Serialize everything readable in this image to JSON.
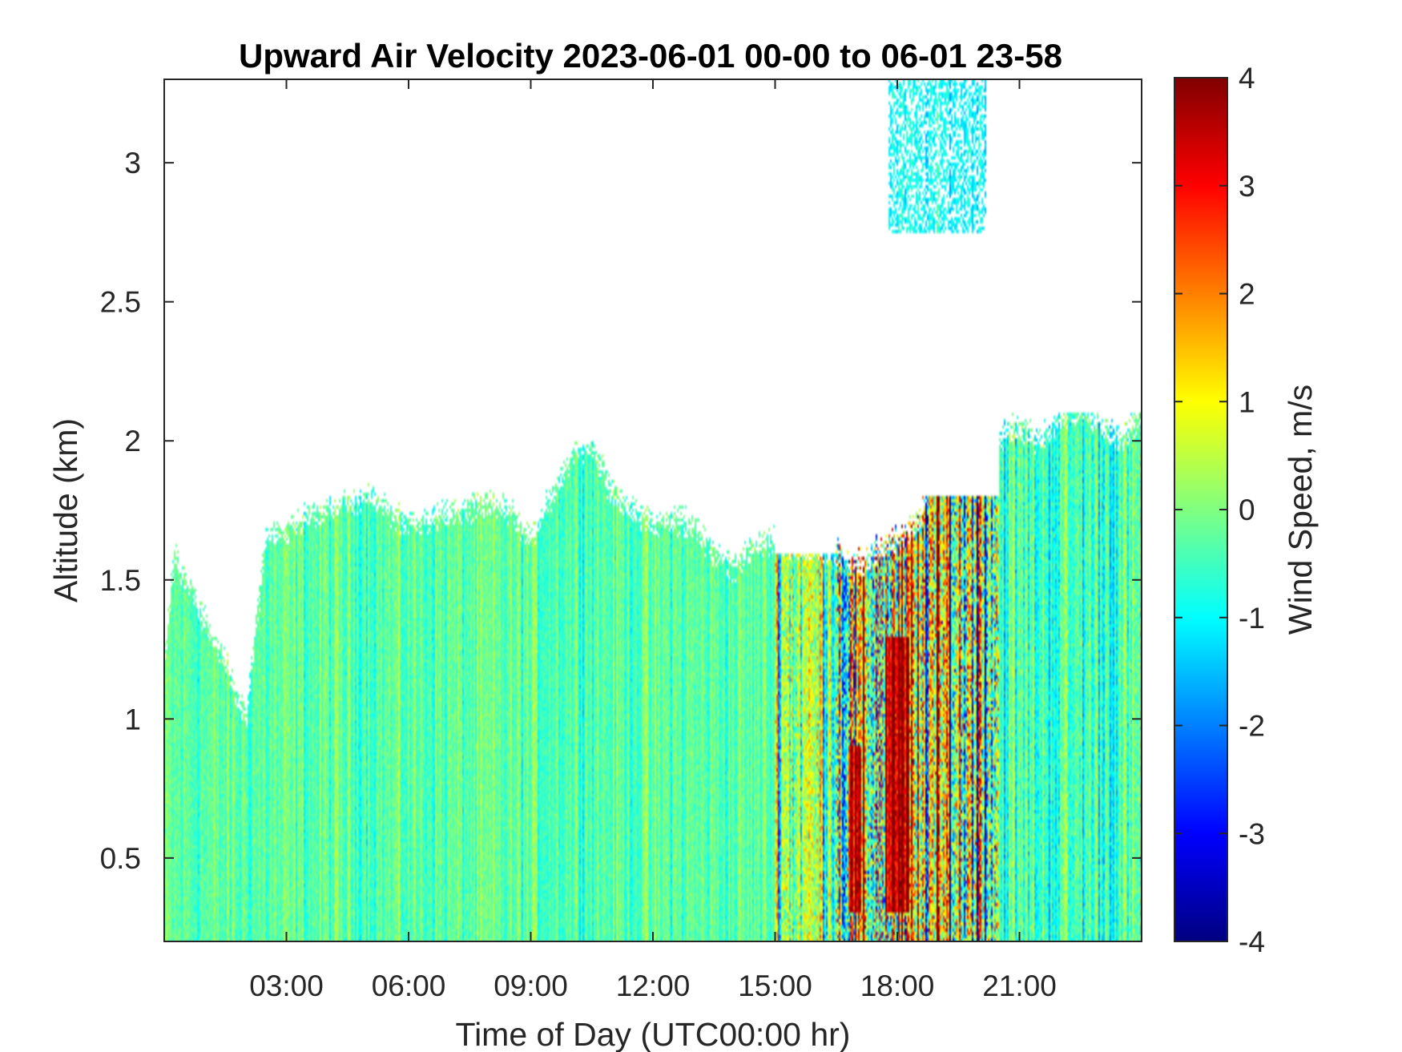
{
  "chart_data": {
    "type": "heatmap",
    "title": "Upward Air Velocity 2023-06-01 00-00 to 06-01 23-58",
    "xlabel": "Time of Day (UTC00:00 hr)",
    "ylabel": "Altitude (km)",
    "colorbar_label": "Wind Speed, m/s",
    "x_unit": "hours",
    "xlim": [
      0,
      24
    ],
    "ylim": [
      0.2,
      3.3
    ],
    "x_ticks": [
      3,
      6,
      9,
      12,
      15,
      18,
      21
    ],
    "x_tick_labels": [
      "03:00",
      "06:00",
      "09:00",
      "12:00",
      "15:00",
      "18:00",
      "21:00"
    ],
    "y_ticks": [
      0.5,
      1,
      1.5,
      2,
      2.5,
      3
    ],
    "y_tick_labels": [
      "0.5",
      "1",
      "1.5",
      "2",
      "2.5",
      "3"
    ],
    "clim": [
      -4,
      4
    ],
    "colorbar_ticks": [
      4,
      3,
      2,
      1,
      0,
      -1,
      -2,
      -3,
      -4
    ],
    "colorbar_tick_labels": [
      "4",
      "3",
      "2",
      "1",
      "0",
      "-1",
      "-2",
      "-3",
      "-4"
    ],
    "colormap": "jet",
    "grid": false,
    "data_top_km": [
      [
        0.0,
        1.2
      ],
      [
        0.25,
        1.6
      ],
      [
        0.5,
        1.5
      ],
      [
        1.0,
        1.35
      ],
      [
        1.5,
        1.2
      ],
      [
        2.0,
        1.0
      ],
      [
        2.5,
        1.65
      ],
      [
        3.0,
        1.68
      ],
      [
        3.5,
        1.72
      ],
      [
        4.0,
        1.75
      ],
      [
        4.5,
        1.78
      ],
      [
        5.0,
        1.8
      ],
      [
        5.5,
        1.75
      ],
      [
        6.0,
        1.7
      ],
      [
        6.5,
        1.72
      ],
      [
        7.0,
        1.74
      ],
      [
        7.5,
        1.76
      ],
      [
        8.0,
        1.78
      ],
      [
        8.5,
        1.75
      ],
      [
        9.0,
        1.65
      ],
      [
        9.5,
        1.8
      ],
      [
        10.0,
        1.95
      ],
      [
        10.5,
        2.0
      ],
      [
        11.0,
        1.8
      ],
      [
        11.5,
        1.75
      ],
      [
        12.0,
        1.7
      ],
      [
        12.5,
        1.72
      ],
      [
        13.0,
        1.7
      ],
      [
        13.5,
        1.6
      ],
      [
        14.0,
        1.55
      ],
      [
        14.5,
        1.62
      ],
      [
        15.0,
        1.64
      ],
      [
        15.5,
        1.62
      ],
      [
        16.0,
        1.62
      ],
      [
        16.5,
        1.6
      ],
      [
        17.0,
        1.55
      ],
      [
        17.5,
        1.6
      ],
      [
        18.0,
        1.65
      ],
      [
        18.5,
        1.7
      ],
      [
        19.0,
        1.95
      ],
      [
        19.5,
        2.05
      ],
      [
        20.0,
        2.05
      ],
      [
        20.5,
        2.02
      ],
      [
        21.0,
        2.05
      ],
      [
        21.5,
        2.0
      ],
      [
        22.0,
        2.08
      ],
      [
        22.5,
        2.12
      ],
      [
        23.0,
        2.05
      ],
      [
        23.5,
        2.0
      ],
      [
        24.0,
        2.1
      ]
    ],
    "regions": [
      {
        "x": [
          0,
          15
        ],
        "y": [
          0.2,
          2.0
        ],
        "dominant_speed_ms": -0.3,
        "spread_ms": 0.5
      },
      {
        "x": [
          15,
          16.5
        ],
        "y": [
          0.2,
          1.6
        ],
        "dominant_speed_ms": 0.3,
        "spread_ms": 1.5
      },
      {
        "x": [
          16.5,
          20.5
        ],
        "y": [
          0.2,
          1.8
        ],
        "dominant_speed_ms": 0.5,
        "spread_ms": 3.0
      },
      {
        "x": [
          17.7,
          18.3
        ],
        "y": [
          0.3,
          1.3
        ],
        "dominant_speed_ms": 3.5,
        "spread_ms": 1.0
      },
      {
        "x": [
          16.8,
          17.1
        ],
        "y": [
          0.3,
          0.9
        ],
        "dominant_speed_ms": 3.2,
        "spread_ms": 1.0
      },
      {
        "x": [
          20.5,
          24
        ],
        "y": [
          0.2,
          2.1
        ],
        "dominant_speed_ms": -0.5,
        "spread_ms": 0.8
      },
      {
        "x": [
          17.8,
          20.2
        ],
        "y": [
          2.75,
          3.3
        ],
        "dominant_speed_ms": -1.0,
        "spread_ms": 0.4
      }
    ]
  },
  "colors": {
    "axis": "#262626",
    "background": "#ffffff"
  }
}
